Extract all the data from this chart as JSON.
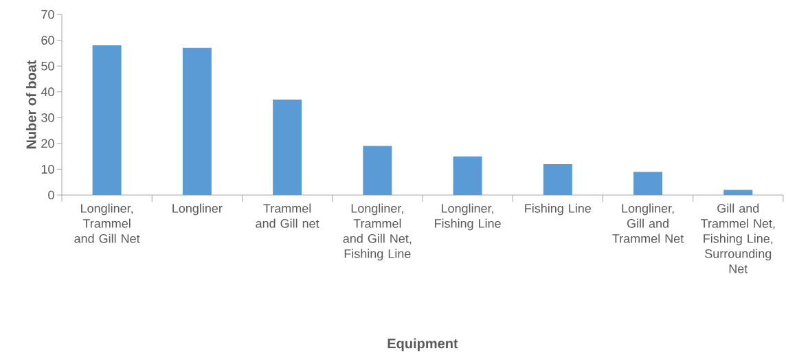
{
  "chart_data": {
    "type": "bar",
    "categories": [
      "Longliner, Trammel and Gill Net",
      "Longliner",
      "Trammel and Gill net",
      "Longliner, Trammel and Gill Net, Fishing Line",
      "Longliner, Fishing Line",
      "Fishing Line",
      "Longliner, Gill and Trammel Net",
      "Gill and Trammel Net, Fishing Line, Surrounding Net"
    ],
    "values": [
      58,
      57,
      37,
      19,
      15,
      12,
      9,
      2
    ],
    "color": "#5b9bd5",
    "xlabel": "Equipment",
    "ylabel": "Nuber of boat",
    "ylim": [
      0,
      70
    ],
    "yticks": [
      0,
      10,
      20,
      30,
      40,
      50,
      60,
      70
    ]
  }
}
